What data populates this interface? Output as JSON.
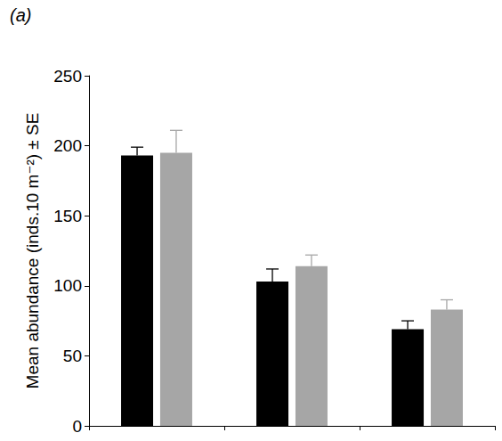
{
  "chart_data": {
    "type": "bar",
    "title": "(a)",
    "y_label": "Mean abundance (inds.10 m⁻²) ± SE",
    "categories": [
      null,
      null,
      null
    ],
    "series": [
      {
        "color": "#000000",
        "values": [
          193,
          103,
          69
        ],
        "errors": [
          6,
          9,
          6
        ]
      },
      {
        "color": "#a6a6a6",
        "values": [
          195,
          114,
          83
        ],
        "errors": [
          16,
          8,
          7
        ]
      }
    ],
    "ylim": [
      0,
      250
    ],
    "yticks": [
      0,
      50,
      100,
      150,
      200,
      250
    ],
    "grid": false
  }
}
